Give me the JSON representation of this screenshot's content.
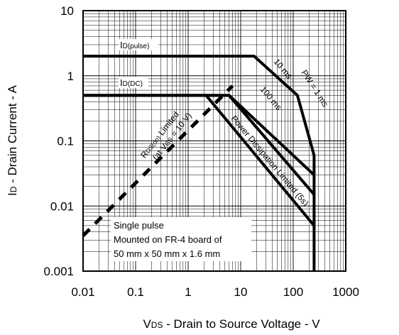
{
  "chart_data": {
    "type": "line",
    "scale": "log-log",
    "grid": true,
    "xlim": [
      0.01,
      1000
    ],
    "ylim": [
      0.001,
      10
    ],
    "x_ticks": [
      "0.01",
      "0.1",
      "1",
      "10",
      "100",
      "1000"
    ],
    "y_ticks": [
      "0.001",
      "0.01",
      "0.1",
      "1",
      "10"
    ],
    "xlabel": {
      "main": "V",
      "sub": "DS",
      "rest": " - Drain to Source Voltage - V"
    },
    "ylabel": {
      "main": "I",
      "sub": "D",
      "rest": " - Drain Current - A"
    },
    "series": [
      {
        "name": "ID(pulse)",
        "style": "solid",
        "points": [
          [
            0.01,
            2
          ],
          [
            18,
            2
          ],
          [
            120,
            0.5
          ],
          [
            250,
            0.06
          ],
          [
            250,
            0.001
          ]
        ]
      },
      {
        "name": "ID(DC)",
        "style": "solid",
        "points": [
          [
            0.01,
            0.5
          ],
          [
            6,
            0.5
          ],
          [
            250,
            0.03
          ]
        ]
      },
      {
        "name": "100 ms",
        "style": "solid",
        "points": [
          [
            0.01,
            0.5
          ],
          [
            6,
            0.5
          ],
          [
            250,
            0.015
          ]
        ]
      },
      {
        "name": "Power Dissipation Limited (5s)",
        "style": "solid",
        "points": [
          [
            0.01,
            0.5
          ],
          [
            2.2,
            0.5
          ],
          [
            250,
            0.005
          ]
        ]
      },
      {
        "name": "RDS(on) Limited (at VGS = 10 V)",
        "style": "dashed",
        "points": [
          [
            0.01,
            0.0035
          ],
          [
            7,
            0.7
          ]
        ]
      }
    ],
    "annotations": {
      "id_pulse": {
        "main": "I",
        "sub": "D(pulse)"
      },
      "id_dc": {
        "main": "I",
        "sub": "D(DC)"
      },
      "pw_1ms": "PW = 1 ms",
      "t_10ms": "10 ms",
      "t_100ms": "100 ms",
      "pd_limited": "Power Dissipation Limited (5s)",
      "rds_line1": {
        "a": "R",
        "sub": "DS(on)",
        "b": " Limited"
      },
      "rds_line2": {
        "a": "(at V",
        "sub": "GS",
        "b": " = 10 V)"
      },
      "note_lines": [
        "Single pulse",
        "Mounted on FR-4 board of",
        "50 mm x 50 mm x 1.6 mm"
      ]
    }
  }
}
